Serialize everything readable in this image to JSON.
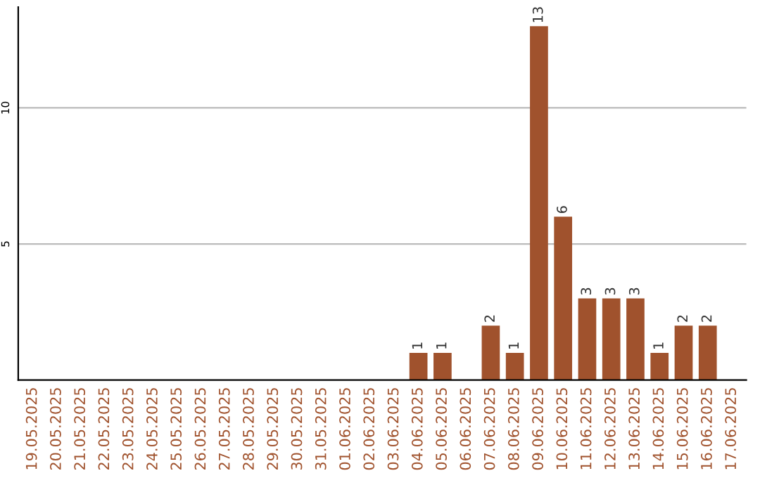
{
  "chart_data": {
    "type": "bar",
    "categories": [
      "19.05.2025",
      "20.05.2025",
      "21.05.2025",
      "22.05.2025",
      "23.05.2025",
      "24.05.2025",
      "25.05.2025",
      "26.05.2025",
      "27.05.2025",
      "28.05.2025",
      "29.05.2025",
      "30.05.2025",
      "31.05.2025",
      "01.06.2025",
      "02.06.2025",
      "03.06.2025",
      "04.06.2025",
      "05.06.2025",
      "06.06.2025",
      "07.06.2025",
      "08.06.2025",
      "09.06.2025",
      "10.06.2025",
      "11.06.2025",
      "12.06.2025",
      "13.06.2025",
      "14.06.2025",
      "15.06.2025",
      "16.06.2025",
      "17.06.2025"
    ],
    "values": [
      0,
      0,
      0,
      0,
      0,
      0,
      0,
      0,
      0,
      0,
      0,
      0,
      0,
      0,
      0,
      0,
      1,
      1,
      0,
      2,
      1,
      13,
      6,
      3,
      3,
      3,
      1,
      2,
      2,
      0
    ],
    "value_labels": [
      null,
      null,
      null,
      null,
      null,
      null,
      null,
      null,
      null,
      null,
      null,
      null,
      null,
      null,
      null,
      null,
      "1",
      "1",
      null,
      "2",
      "1",
      "13",
      "6",
      "3",
      "3",
      "3",
      "1",
      "2",
      "2",
      null
    ],
    "color": "#a0522d",
    "ylim": [
      0,
      13.7
    ],
    "yticks": [
      5,
      10
    ],
    "grid": "y"
  }
}
